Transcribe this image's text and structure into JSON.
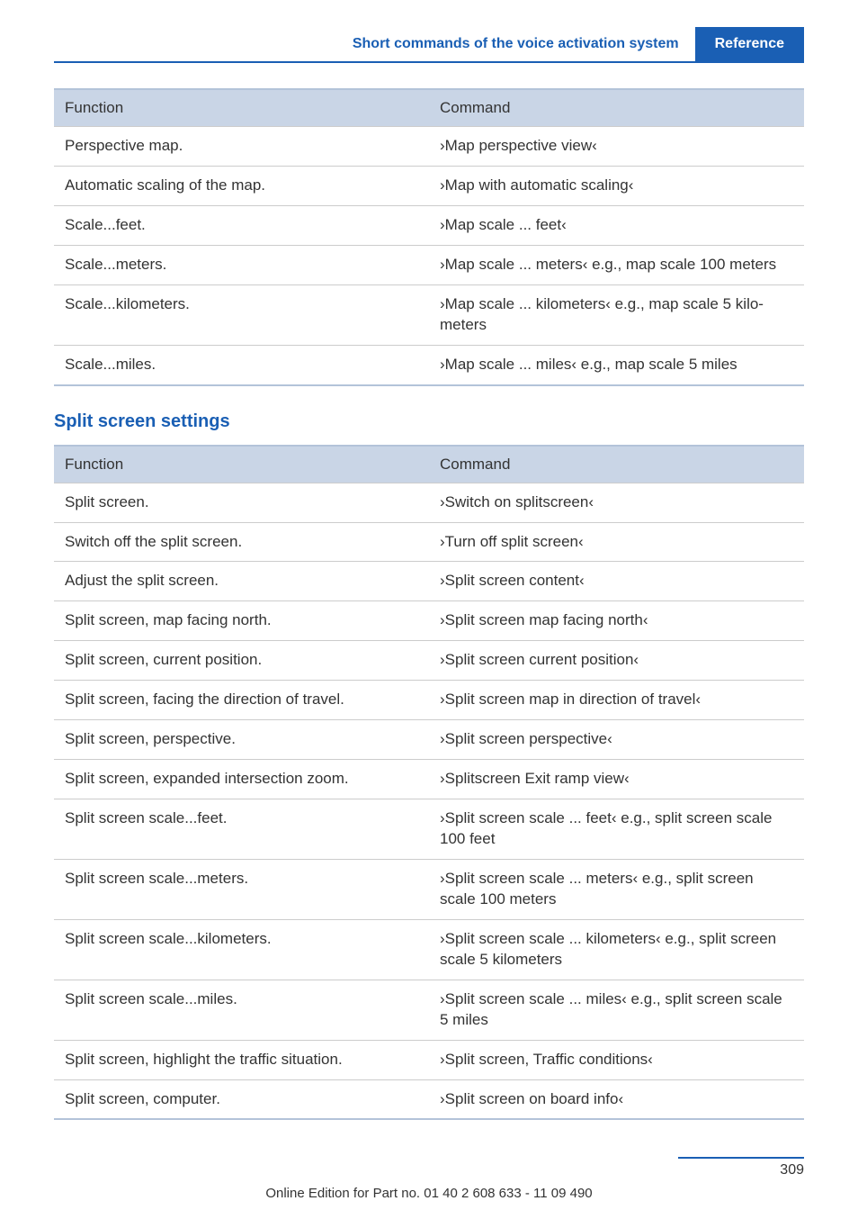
{
  "header": {
    "left": "Short commands of the voice activation system",
    "right": "Reference"
  },
  "table1": {
    "headers": {
      "func": "Function",
      "cmd": "Command"
    },
    "rows": [
      {
        "func": "Perspective map.",
        "cmd": "›Map perspective view‹"
      },
      {
        "func": "Automatic scaling of the map.",
        "cmd": "›Map with automatic scaling‹"
      },
      {
        "func": "Scale...feet.",
        "cmd": "›Map scale ... feet‹"
      },
      {
        "func": "Scale...meters.",
        "cmd": "›Map scale ... meters‹ e.g., map scale 100 meters"
      },
      {
        "func": "Scale...kilometers.",
        "cmd": "›Map scale ... kilometers‹ e.g., map scale 5 kilo­meters"
      },
      {
        "func": "Scale...miles.",
        "cmd": "›Map scale ... miles‹ e.g., map scale 5 miles"
      }
    ]
  },
  "section2_title": "Split screen settings",
  "table2": {
    "headers": {
      "func": "Function",
      "cmd": "Command"
    },
    "rows": [
      {
        "func": "Split screen.",
        "cmd": "›Switch on splitscreen‹"
      },
      {
        "func": "Switch off the split screen.",
        "cmd": "›Turn off split screen‹"
      },
      {
        "func": "Adjust the split screen.",
        "cmd": "›Split screen content‹"
      },
      {
        "func": "Split screen, map facing north.",
        "cmd": "›Split screen map facing north‹"
      },
      {
        "func": "Split screen, current position.",
        "cmd": "›Split screen current position‹"
      },
      {
        "func": "Split screen, facing the direction of travel.",
        "cmd": "›Split screen map in direction of travel‹"
      },
      {
        "func": "Split screen, perspective.",
        "cmd": "›Split screen perspective‹"
      },
      {
        "func": "Split screen, expanded intersection zoom.",
        "cmd": "›Splitscreen Exit ramp view‹"
      },
      {
        "func": "Split screen scale...feet.",
        "cmd": "›Split screen scale ... feet‹ e.g., split screen scale 100 feet"
      },
      {
        "func": "Split screen scale...meters.",
        "cmd": "›Split screen scale ... meters‹ e.g., split screen scale 100 meters"
      },
      {
        "func": "Split screen scale...kilometers.",
        "cmd": "›Split screen scale ... kilometers‹ e.g., split screen scale 5 kilometers"
      },
      {
        "func": "Split screen scale...miles.",
        "cmd": "›Split screen scale ... miles‹ e.g., split screen scale 5 miles"
      },
      {
        "func": "Split screen, highlight the traffic situation.",
        "cmd": "›Split screen, Traffic conditions‹"
      },
      {
        "func": "Split screen, computer.",
        "cmd": "›Split screen on board info‹"
      }
    ]
  },
  "footer": {
    "page": "309",
    "edition": "Online Edition for Part no. 01 40 2 608 633 - 11 09 490"
  }
}
